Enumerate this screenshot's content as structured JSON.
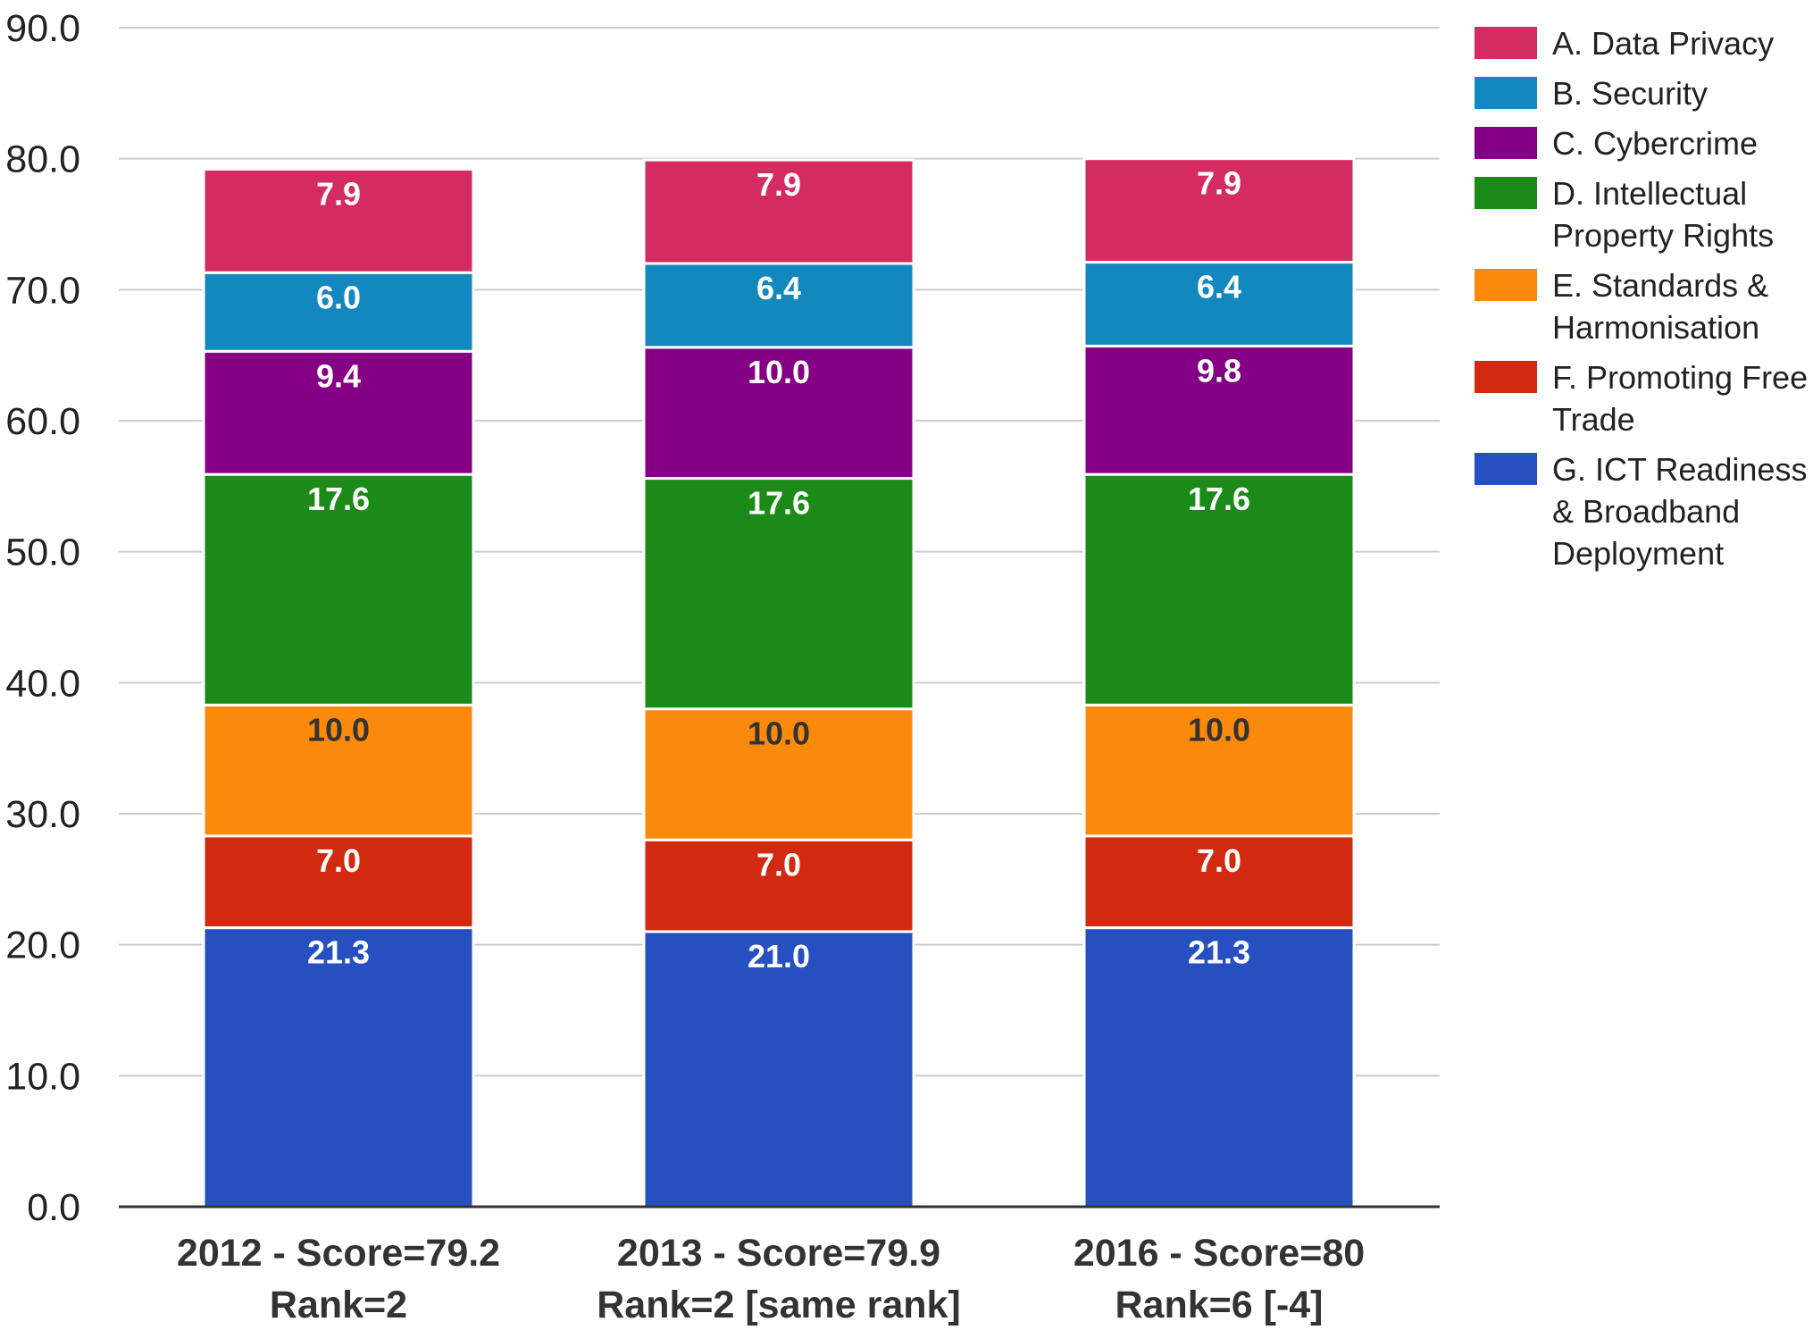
{
  "chart_data": {
    "type": "bar",
    "stacked": true,
    "categories": [
      [
        "2012 - Score=79.2",
        "Rank=2"
      ],
      [
        "2013 - Score=79.9",
        "Rank=2 [same rank]"
      ],
      [
        "2016 - Score=80",
        "Rank=6 [-4]"
      ]
    ],
    "series": [
      {
        "name": "G. ICT Readiness & Broadband Deployment",
        "legend_lines": [
          "G. ICT Readiness",
          "& Broadband",
          "Deployment"
        ],
        "color": "#2650c0",
        "label_color": "#ffffff",
        "values": [
          21.3,
          21.0,
          21.3
        ],
        "labels": [
          "21.3",
          "21.0",
          "21.3"
        ]
      },
      {
        "name": "F. Promoting Free Trade",
        "legend_lines": [
          "F. Promoting Free",
          "Trade"
        ],
        "color": "#d22a10",
        "label_color": "#ffffff",
        "values": [
          7.0,
          7.0,
          7.0
        ],
        "labels": [
          "7.0",
          "7.0",
          "7.0"
        ]
      },
      {
        "name": "E. Standards & Harmonisation",
        "legend_lines": [
          "E. Standards &",
          "Harmonisation"
        ],
        "color": "#fb8a0c",
        "label_color": "#333333",
        "values": [
          10.0,
          10.0,
          10.0
        ],
        "labels": [
          "10.0",
          "10.0",
          "10.0"
        ]
      },
      {
        "name": "D. Intellectual Property Rights",
        "legend_lines": [
          "D. Intellectual",
          "Property Rights"
        ],
        "color": "#1b8a18",
        "label_color": "#ffffff",
        "values": [
          17.6,
          17.6,
          17.6
        ],
        "labels": [
          "17.6",
          "17.6",
          "17.6"
        ]
      },
      {
        "name": "C. Cybercrime",
        "legend_lines": [
          "C. Cybercrime"
        ],
        "color": "#850085",
        "label_color": "#ffffff",
        "values": [
          9.4,
          10.0,
          9.8
        ],
        "labels": [
          "9.4",
          "10.0",
          "9.8"
        ]
      },
      {
        "name": "B. Security",
        "legend_lines": [
          "B. Security"
        ],
        "color": "#1288be",
        "label_color": "#ffffff",
        "values": [
          6.0,
          6.4,
          6.4
        ],
        "labels": [
          "6.0",
          "6.4",
          "6.4"
        ]
      },
      {
        "name": "A. Data Privacy",
        "legend_lines": [
          "A. Data Privacy"
        ],
        "color": "#d42b63",
        "label_color": "#ffffff",
        "values": [
          7.9,
          7.9,
          7.9
        ],
        "labels": [
          "7.9",
          "7.9",
          "7.9"
        ]
      }
    ],
    "legend_order": [
      6,
      5,
      4,
      3,
      2,
      1,
      0
    ],
    "y_ticks": [
      "0.0",
      "10.0",
      "20.0",
      "30.0",
      "40.0",
      "50.0",
      "60.0",
      "70.0",
      "80.0",
      "90.0"
    ],
    "ylim": [
      0,
      90
    ],
    "grid": true,
    "legend_position": "right",
    "title": "",
    "xlabel": "",
    "ylabel": ""
  }
}
